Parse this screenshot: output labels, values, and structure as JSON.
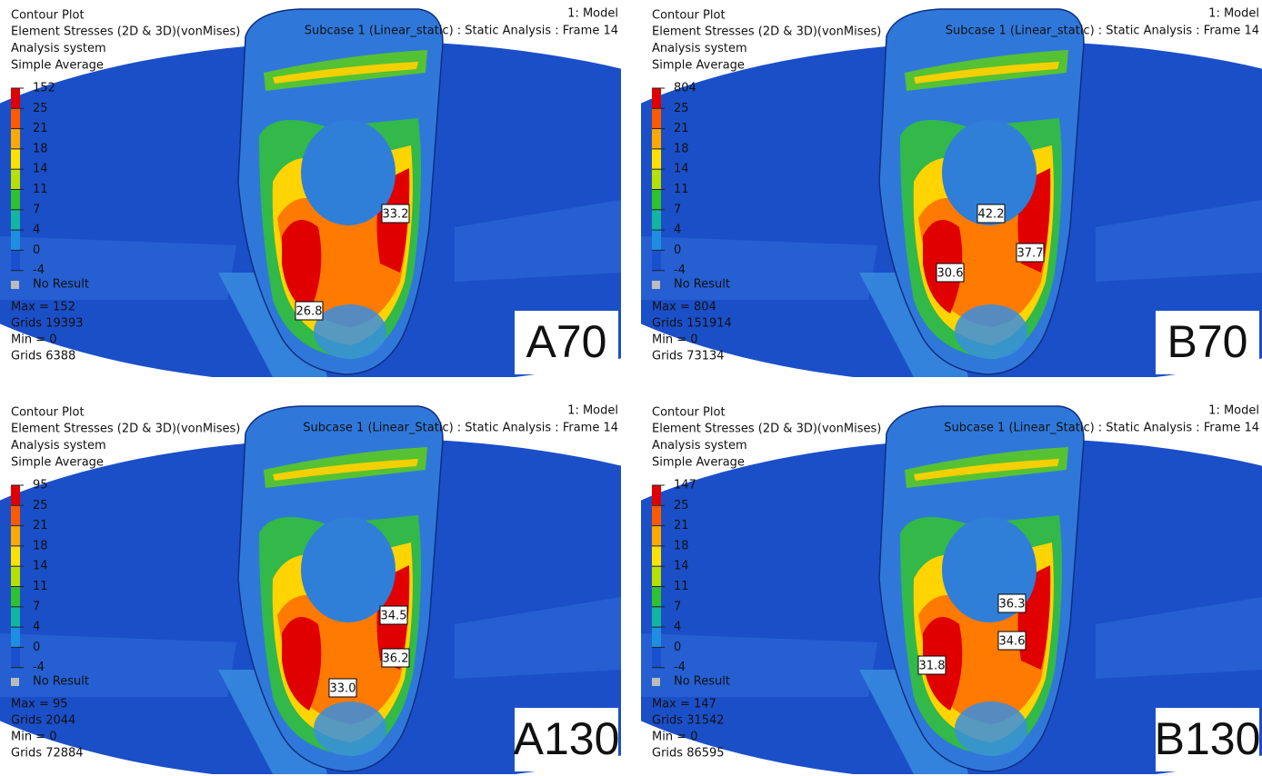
{
  "panels": [
    {
      "title": "Contour Plot",
      "lines": [
        "Element Stresses (2D & 3D)(vonMises)",
        "Analysis system",
        "Simple Average"
      ],
      "model": "1: Model",
      "subcase": "Subcase 1 (Linear_static) : Static Analysis : Frame 14",
      "legend": [
        "152",
        "25",
        "21",
        "18",
        "14",
        "11",
        "7",
        "4",
        "0",
        "-4"
      ],
      "no_result": "No Result",
      "info": [
        "Max = 152",
        "Grids 19393",
        "Min = 0",
        "Grids 6388"
      ],
      "annotations": [
        "33.2",
        "26.8"
      ],
      "label": "A70"
    },
    {
      "title": "Contour Plot",
      "lines": [
        "Element Stresses (2D & 3D)(vonMises)",
        "Analysis system",
        "Simple Average"
      ],
      "model": "1: Model",
      "subcase": "Subcase 1 (Linear_static) : Static Analysis : Frame 14",
      "legend": [
        "804",
        "25",
        "21",
        "18",
        "14",
        "11",
        "7",
        "4",
        "0",
        "-4"
      ],
      "no_result": "No Result",
      "info": [
        "Max = 804",
        "Grids 151914",
        "Min = 0",
        "Grids 73134"
      ],
      "annotations": [
        "42.2",
        "37.7",
        "30.6"
      ],
      "label": "B70"
    },
    {
      "title": "Contour Plot",
      "lines": [
        "Element Stresses (2D & 3D)(vonMises)",
        "Analysis system",
        "Simple Average"
      ],
      "model": "1: Model",
      "subcase": "Subcase 1 (Linear_Static) : Static Analysis : Frame 14",
      "legend": [
        "95",
        "25",
        "21",
        "18",
        "14",
        "11",
        "7",
        "4",
        "0",
        "-4"
      ],
      "no_result": "No Result",
      "info": [
        "Max = 95",
        "Grids 2044",
        "Min = 0",
        "Grids 72884"
      ],
      "annotations": [
        "34.5",
        "36.2",
        "33.0"
      ],
      "label": "A130"
    },
    {
      "title": "Contour Plot",
      "lines": [
        "Element Stresses (2D & 3D)(vonMises)",
        "Analysis system",
        "Simple Average"
      ],
      "model": "1: Model",
      "subcase": "Subcase 1 (Linear_Static) : Static Analysis : Frame 14",
      "legend": [
        "147",
        "25",
        "21",
        "18",
        "14",
        "11",
        "7",
        "4",
        "0",
        "-4"
      ],
      "no_result": "No Result",
      "info": [
        "Max = 147",
        "Grids 31542",
        "Min = 0",
        "Grids 86595"
      ],
      "annotations": [
        "36.3",
        "34.6",
        "31.8"
      ],
      "label": "B130"
    }
  ]
}
